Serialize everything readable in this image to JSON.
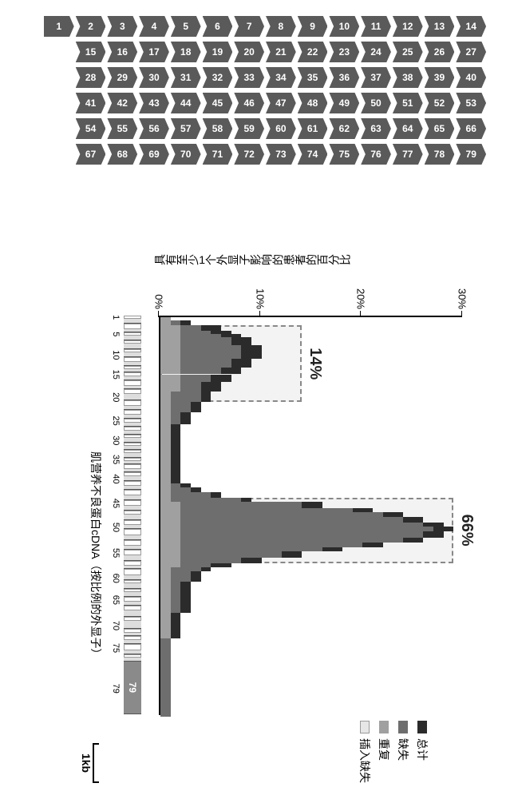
{
  "exons": {
    "rows": [
      [
        1,
        2,
        3,
        4,
        5,
        6,
        7,
        8,
        9,
        10,
        11,
        12,
        13,
        14
      ],
      [
        15,
        16,
        17,
        18,
        19,
        20,
        21,
        22,
        23,
        24,
        25,
        26,
        27
      ],
      [
        28,
        29,
        30,
        31,
        32,
        33,
        34,
        35,
        36,
        37,
        38,
        39,
        40
      ],
      [
        41,
        42,
        43,
        44,
        45,
        46,
        47,
        48,
        49,
        50,
        51,
        52,
        53
      ],
      [
        54,
        55,
        56,
        57,
        58,
        59,
        60,
        61,
        62,
        63,
        64,
        65,
        66
      ],
      [
        67,
        68,
        69,
        70,
        71,
        72,
        73,
        74,
        75,
        76,
        77,
        78,
        79
      ]
    ],
    "fill": "#5a5a5a",
    "text_color": "#ffffff",
    "fontsize": 12
  },
  "chart": {
    "type": "stacked-bar",
    "y_axis_label": "具有至少1个外显子影响的患者的百分比",
    "x_axis_label": "肌营养不良蛋白cDNA（按比例的外显子）",
    "yticks": [
      0,
      10,
      20,
      30
    ],
    "ytick_labels": [
      "0%",
      "10%",
      "20%",
      "30%"
    ],
    "ylim": [
      0,
      30
    ],
    "xtick_labels": [
      1,
      5,
      10,
      15,
      20,
      25,
      30,
      35,
      40,
      45,
      50,
      55,
      60,
      65,
      70,
      75,
      79
    ],
    "series_colors": {
      "total": "#2b2b2b",
      "deletion": "#6e6e6e",
      "duplication": "#a0a0a0",
      "indel": "#e6e6e6"
    },
    "legend": {
      "total": "总计",
      "deletion": "缺失",
      "duplication": "重复",
      "indel": "插入缺失"
    },
    "exon_widths": [
      0.8,
      1.0,
      1.2,
      0.8,
      0.8,
      1.0,
      0.8,
      1.2,
      0.8,
      1.0,
      1.0,
      0.9,
      0.8,
      0.8,
      0.8,
      1.0,
      1.2,
      0.8,
      1.0,
      1.5,
      1.2,
      1.0,
      1.0,
      0.9,
      0.9,
      1.0,
      0.9,
      0.8,
      0.8,
      1.0,
      0.8,
      0.8,
      0.8,
      1.0,
      0.8,
      0.8,
      1.0,
      0.8,
      0.8,
      1.2,
      1.0,
      1.0,
      1.2,
      1.0,
      1.4,
      1.0,
      1.0,
      1.2,
      1.0,
      1.0,
      1.5,
      1.0,
      1.2,
      0.9,
      1.4,
      1.2,
      1.0,
      0.8,
      1.5,
      1.0,
      0.8,
      1.2,
      0.8,
      1.0,
      1.2,
      0.9,
      1.0,
      1.4,
      1.0,
      1.8,
      0.8,
      0.8,
      0.8,
      1.0,
      1.5,
      0.8,
      0.8,
      0.8,
      12.0
    ],
    "data": {
      "total": [
        1,
        3,
        6,
        7,
        8,
        9,
        9,
        10,
        10,
        10,
        9,
        9,
        8,
        8,
        7,
        7,
        6,
        6,
        5,
        5,
        4,
        4,
        3,
        3,
        3,
        2,
        2,
        2,
        2,
        2,
        2,
        2,
        2,
        2,
        2,
        2,
        2,
        2,
        2,
        2,
        3,
        4,
        6,
        9,
        16,
        21,
        24,
        26,
        28,
        29,
        28,
        26,
        22,
        18,
        14,
        10,
        7,
        5,
        4,
        4,
        3,
        3,
        3,
        3,
        3,
        3,
        3,
        2,
        2,
        2,
        2,
        2,
        1,
        1,
        1,
        1,
        1,
        1,
        1
      ],
      "deletion": [
        0,
        2,
        4,
        5,
        6,
        7,
        7,
        8,
        8,
        8,
        7,
        7,
        6,
        6,
        5,
        5,
        4,
        4,
        4,
        4,
        3,
        3,
        2,
        2,
        2,
        1,
        1,
        1,
        1,
        1,
        1,
        1,
        1,
        1,
        1,
        1,
        1,
        1,
        1,
        1,
        2,
        3,
        5,
        8,
        14,
        19,
        22,
        24,
        26,
        27,
        26,
        24,
        20,
        16,
        12,
        8,
        5,
        4,
        3,
        3,
        2,
        2,
        2,
        2,
        2,
        2,
        2,
        1,
        1,
        1,
        1,
        1,
        1,
        1,
        1,
        1,
        1,
        1,
        1
      ],
      "duplication": [
        1,
        1,
        2,
        2,
        2,
        2,
        2,
        2,
        2,
        2,
        2,
        2,
        2,
        2,
        2,
        2,
        2,
        2,
        1,
        1,
        1,
        1,
        1,
        1,
        1,
        1,
        1,
        1,
        1,
        1,
        1,
        1,
        1,
        1,
        1,
        1,
        1,
        1,
        1,
        1,
        1,
        1,
        1,
        1,
        2,
        2,
        2,
        2,
        2,
        2,
        2,
        2,
        2,
        2,
        2,
        2,
        2,
        1,
        1,
        1,
        1,
        1,
        1,
        1,
        1,
        1,
        1,
        1,
        1,
        1,
        1,
        1,
        0,
        0,
        0,
        0,
        0,
        0,
        0
      ],
      "indel": [
        0,
        0,
        0,
        0,
        0,
        0,
        0,
        0,
        0,
        0,
        0,
        0,
        0,
        0,
        0,
        0,
        0,
        0,
        0,
        0,
        0,
        0,
        0,
        0,
        0,
        0,
        0,
        0,
        0,
        0,
        0,
        0,
        0,
        0,
        0,
        0,
        0,
        0,
        0,
        0,
        0,
        0,
        0,
        0,
        0,
        0,
        0,
        0,
        0,
        0,
        0,
        0,
        0,
        0,
        0,
        0,
        0,
        0,
        0,
        0,
        0,
        0,
        0,
        0,
        0,
        0,
        0,
        0,
        0,
        0,
        0,
        0,
        0,
        0,
        0,
        0,
        0,
        0,
        0
      ]
    },
    "hotspots": [
      {
        "label": "14%",
        "start_exon": 3,
        "end_exon": 20,
        "height_pct": 14
      },
      {
        "label": "66%",
        "start_exon": 44,
        "end_exon": 56,
        "height_pct": 29
      }
    ],
    "scalebar": "1kb",
    "background_color": "#ffffff",
    "axis_color": "#000000",
    "hotspot_border": "#888888",
    "hotspot_fill": "rgba(200,200,200,0.22)"
  }
}
